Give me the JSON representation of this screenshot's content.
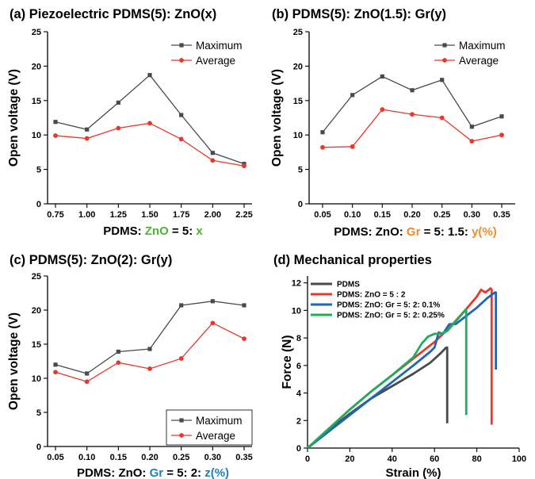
{
  "chart_data": [
    {
      "type": "line",
      "title": "(a) Piezoelectric PDMS(5): ZnO(x)",
      "xlabel_parts": [
        {
          "text": "PDMS: ",
          "color": "#000000"
        },
        {
          "text": "ZnO",
          "color": "#52b033"
        },
        {
          "text": " = 5: ",
          "color": "#000000"
        },
        {
          "text": "x",
          "color": "#52b033"
        }
      ],
      "ylabel": "Open voltage (V)",
      "categories": [
        "0.75",
        "1.00",
        "1.25",
        "1.50",
        "1.75",
        "2.00",
        "2.25"
      ],
      "ylim": [
        0,
        25
      ],
      "yticks": [
        "0",
        "5",
        "10",
        "15",
        "20",
        "25"
      ],
      "legend_position": "top-right",
      "series": [
        {
          "name": "Maximum",
          "color": "#4a4a4a",
          "marker": "square",
          "values": [
            11.9,
            10.8,
            14.7,
            18.7,
            12.9,
            7.4,
            5.8
          ]
        },
        {
          "name": "Average",
          "color": "#e8382b",
          "marker": "circle",
          "values": [
            9.9,
            9.5,
            11.0,
            11.7,
            9.4,
            6.3,
            5.5
          ]
        }
      ]
    },
    {
      "type": "line",
      "title": "(b) PDMS(5): ZnO(1.5): Gr(y)",
      "xlabel_parts": [
        {
          "text": "PDMS: ZnO: ",
          "color": "#000000"
        },
        {
          "text": "Gr",
          "color": "#f08a2c"
        },
        {
          "text": " = 5: 1.5: ",
          "color": "#000000"
        },
        {
          "text": "y(%)",
          "color": "#f08a2c"
        }
      ],
      "ylabel": "Open voltage (V)",
      "categories": [
        "0.05",
        "0.10",
        "0.15",
        "0.20",
        "0.25",
        "0.30",
        "0.35"
      ],
      "ylim": [
        0,
        25
      ],
      "yticks": [
        "0",
        "5",
        "10",
        "15",
        "20",
        "25"
      ],
      "legend_position": "top-right",
      "series": [
        {
          "name": "Maximum",
          "color": "#4a4a4a",
          "marker": "square",
          "values": [
            10.4,
            15.8,
            18.5,
            16.5,
            18.0,
            11.2,
            12.7
          ]
        },
        {
          "name": "Average",
          "color": "#e8382b",
          "marker": "circle",
          "values": [
            8.2,
            8.3,
            13.7,
            13.0,
            12.5,
            9.1,
            10.0
          ]
        }
      ]
    },
    {
      "type": "line",
      "title": "(c) PDMS(5): ZnO(2): Gr(y)",
      "xlabel_parts": [
        {
          "text": "PDMS: ZnO: ",
          "color": "#000000"
        },
        {
          "text": "Gr",
          "color": "#1f7fc0"
        },
        {
          "text": " = 5: 2: ",
          "color": "#000000"
        },
        {
          "text": "z(%)",
          "color": "#1f7fc0"
        }
      ],
      "ylabel": "Open voltage (V)",
      "categories": [
        "0.05",
        "0.10",
        "0.15",
        "0.20",
        "0.25",
        "0.30",
        "0.35"
      ],
      "ylim": [
        0,
        25
      ],
      "yticks": [
        "0",
        "5",
        "10",
        "15",
        "20",
        "25"
      ],
      "legend_position": "bottom-right",
      "series": [
        {
          "name": "Maximum",
          "color": "#4a4a4a",
          "marker": "square",
          "values": [
            12.0,
            10.7,
            13.9,
            14.3,
            20.7,
            21.3,
            20.7
          ]
        },
        {
          "name": "Average",
          "color": "#e8382b",
          "marker": "circle",
          "values": [
            10.9,
            9.5,
            12.3,
            11.4,
            12.9,
            18.1,
            15.8
          ]
        }
      ]
    },
    {
      "type": "line",
      "title": "(d) Mechanical properties",
      "xlabel": "Strain (%)",
      "ylabel": "Force (N)",
      "xlim": [
        0,
        100
      ],
      "xticks": [
        "0",
        "20",
        "40",
        "60",
        "80",
        "100"
      ],
      "ylim": [
        0,
        12.5
      ],
      "yticks": [
        "0",
        "2",
        "4",
        "6",
        "8",
        "10",
        "12"
      ],
      "legend_position": "top-left",
      "series": [
        {
          "name": "PDMS",
          "color": "#4a4a4a",
          "x": [
            0,
            10,
            20,
            30,
            40,
            50,
            58,
            63,
            65.5,
            66,
            66
          ],
          "y": [
            0,
            1.3,
            2.5,
            3.6,
            4.5,
            5.4,
            6.2,
            6.9,
            7.3,
            7.3,
            1.8
          ]
        },
        {
          "name": "PDMS: ZnO = 5 : 2",
          "color": "#e8382b",
          "x": [
            0,
            10,
            20,
            30,
            40,
            50,
            60,
            68,
            75,
            80,
            82,
            84,
            86.5,
            87,
            87
          ],
          "y": [
            0,
            1.4,
            2.8,
            4.1,
            5.3,
            6.5,
            7.7,
            8.9,
            10.1,
            11.0,
            11.5,
            11.3,
            11.6,
            11.5,
            1.7
          ]
        },
        {
          "name": "PDMS: ZnO: Gr = 5: 2: 0.1%",
          "color": "#1f66b3",
          "x": [
            0,
            10,
            20,
            30,
            40,
            50,
            58,
            60,
            62,
            64,
            67,
            70,
            75,
            80,
            85,
            88.5,
            89,
            89
          ],
          "y": [
            0,
            1.2,
            2.4,
            3.6,
            4.8,
            6.0,
            7.0,
            7.3,
            8.4,
            8.3,
            9.0,
            9.0,
            9.6,
            10.2,
            10.9,
            11.3,
            11.3,
            5.7
          ]
        },
        {
          "name": "PDMS: ZnO: Gr = 5: 2: 0.25%",
          "color": "#1fad5c",
          "x": [
            0,
            10,
            20,
            30,
            40,
            50,
            54,
            57,
            60,
            63,
            66,
            70,
            74.5,
            75,
            75
          ],
          "y": [
            0,
            1.4,
            2.8,
            4.1,
            5.3,
            6.6,
            7.6,
            8.1,
            8.3,
            8.3,
            8.5,
            9.2,
            10.0,
            10.0,
            2.4
          ]
        }
      ]
    }
  ]
}
